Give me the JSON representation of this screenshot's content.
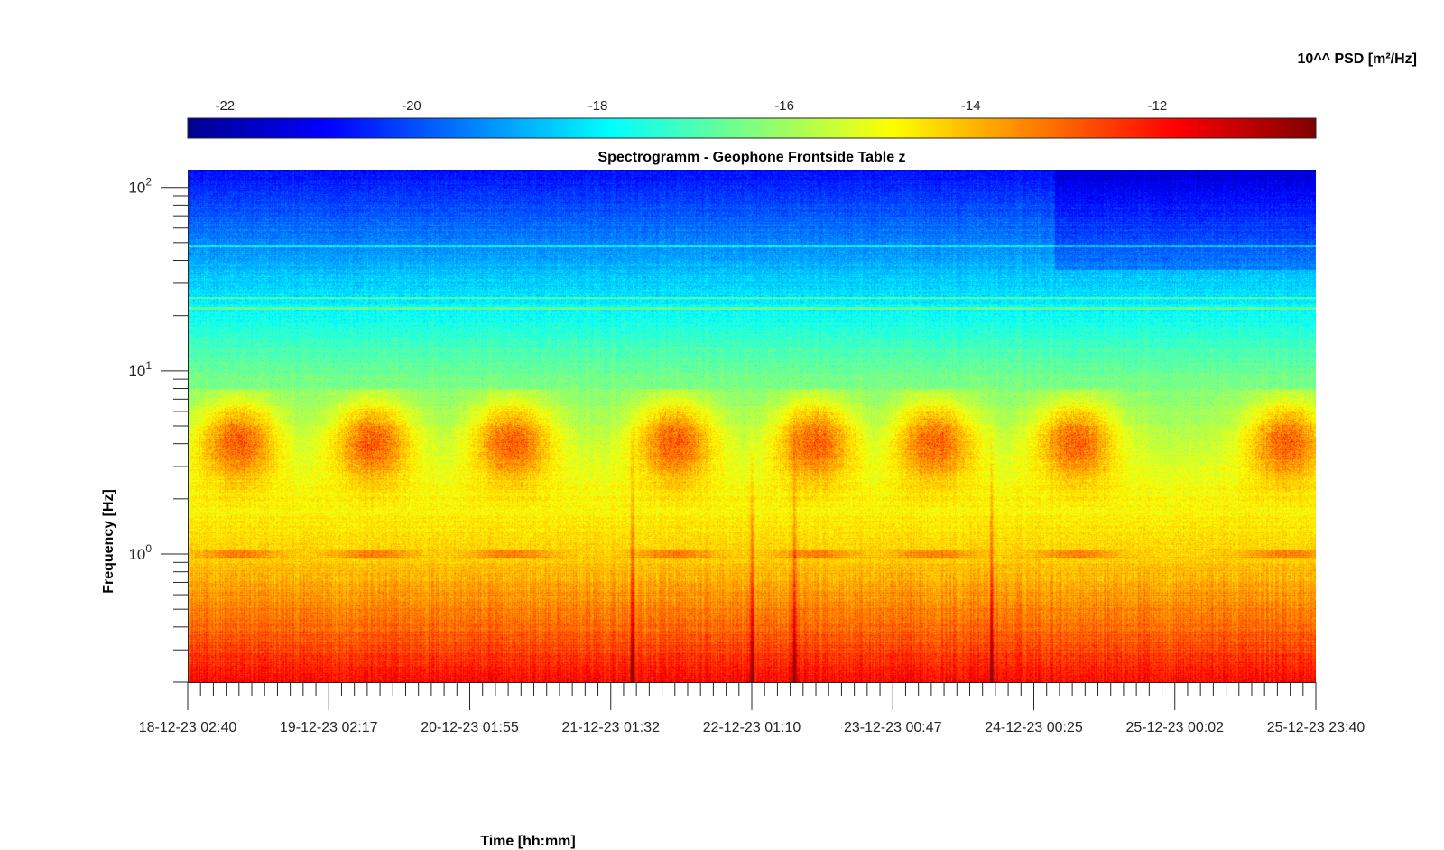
{
  "chart_data": {
    "type": "heatmap",
    "title": "Spectrogramm - Geophone Frontside Table z",
    "xlabel": "Time [hh:mm]",
    "ylabel": "Frequency [Hz]",
    "colorbar": {
      "label": "10^^ PSD [m²/Hz]",
      "range": [
        -22.4,
        -10.3
      ],
      "ticks": [
        -22,
        -20,
        -18,
        -16,
        -14,
        -12
      ],
      "colormap": "jet",
      "colors": [
        "#00008f",
        "#0000ff",
        "#00ffff",
        "#ffff00",
        "#ff0000",
        "#800000"
      ]
    },
    "x_ticks": [
      "18-12-23 02:40",
      "19-12-23 02:17",
      "20-12-23 01:55",
      "21-12-23 01:32",
      "22-12-23 01:10",
      "23-12-23 00:47",
      "24-12-23 00:25",
      "25-12-23 00:02",
      "25-12-23 23:40"
    ],
    "x_range_days": [
      0,
      8
    ],
    "y_scale": "log",
    "y_ticks": [
      {
        "base": "10",
        "exp": "0"
      },
      {
        "base": "10",
        "exp": "1"
      },
      {
        "base": "10",
        "exp": "2"
      }
    ],
    "ylim_hz": [
      0.2,
      125
    ],
    "features": {
      "daily_activity_band_hz": [
        2,
        8
      ],
      "daily_activity_peak_log10_psd": -12.8,
      "activity_centers_days": [
        0.35,
        1.3,
        2.3,
        3.45,
        4.45,
        5.3,
        6.3,
        7.8
      ],
      "tones_hz": [
        48,
        25,
        22
      ],
      "transient_spikes_days": [
        3.15,
        4.0,
        4.3,
        5.7
      ],
      "background_log10_psd": [
        {
          "hz": 0.2,
          "value": -11.8
        },
        {
          "hz": 0.3,
          "value": -12.6
        },
        {
          "hz": 0.6,
          "value": -13.6
        },
        {
          "hz": 1.0,
          "value": -14.3
        },
        {
          "hz": 3.0,
          "value": -15.2
        },
        {
          "hz": 10,
          "value": -16.6
        },
        {
          "hz": 30,
          "value": -18.4
        },
        {
          "hz": 125,
          "value": -20.8
        }
      ]
    }
  }
}
